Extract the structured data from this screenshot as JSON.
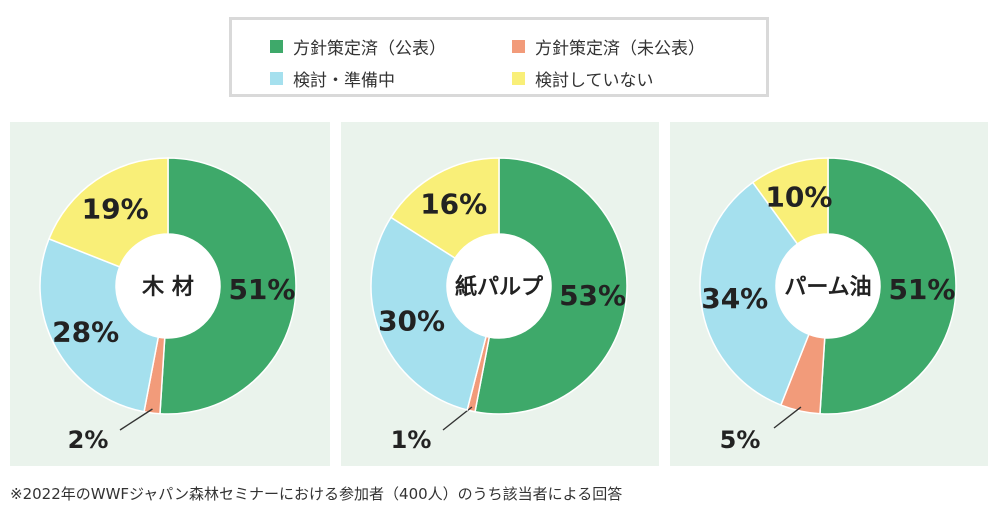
{
  "legend": {
    "items": [
      {
        "label": "方針策定済（公表）",
        "color": "#3ea96a"
      },
      {
        "label": "方針策定済（未公表）",
        "color": "#f29b7a"
      },
      {
        "label": "検討・準備中",
        "color": "#a5e0ee"
      },
      {
        "label": "検討していない",
        "color": "#f9ef78"
      }
    ]
  },
  "chart_data": [
    {
      "type": "pie",
      "title": "木 材",
      "categories": [
        "方針策定済（公表）",
        "方針策定済（未公表）",
        "検討・準備中",
        "検討していない"
      ],
      "values": [
        51,
        2,
        28,
        19
      ],
      "labels": [
        "51%",
        "2%",
        "28%",
        "19%"
      ]
    },
    {
      "type": "pie",
      "title": "紙パルプ",
      "categories": [
        "方針策定済（公表）",
        "方針策定済（未公表）",
        "検討・準備中",
        "検討していない"
      ],
      "values": [
        53,
        1,
        30,
        16
      ],
      "labels": [
        "53%",
        "1%",
        "30%",
        "16%"
      ]
    },
    {
      "type": "pie",
      "title": "パーム油",
      "categories": [
        "方針策定済（公表）",
        "方針策定済（未公表）",
        "検討・準備中",
        "検討していない"
      ],
      "values": [
        51,
        5,
        34,
        10
      ],
      "labels": [
        "51%",
        "5%",
        "34%",
        "10%"
      ]
    }
  ],
  "footnote": "※2022年のWWFジャパン森林セミナーにおける参加者（400人）のうち該当者による回答"
}
